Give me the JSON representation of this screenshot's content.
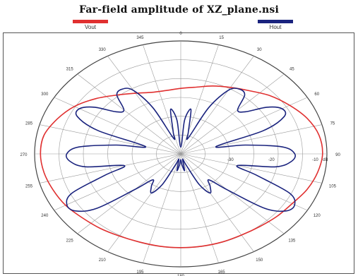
{
  "chart_data": {
    "type": "polar",
    "title": "Far-field amplitude of XZ_plane.nsi",
    "angle_ticks": [
      "0",
      "15",
      "30",
      "45",
      "60",
      "75",
      "90",
      "105",
      "120",
      "135",
      "150",
      "165",
      "180",
      "195",
      "210",
      "225",
      "240",
      "255",
      "270",
      "285",
      "300",
      "315",
      "330",
      "345"
    ],
    "radial_ticks": [
      "-10",
      "-20",
      "-30",
      "dB"
    ],
    "series": [
      {
        "name": "Vout",
        "color": "#e03030",
        "angles": [
          0,
          10,
          20,
          30,
          40,
          50,
          60,
          70,
          80,
          90,
          100,
          110,
          120,
          130,
          140,
          150,
          160,
          170,
          180,
          190,
          200,
          210,
          220,
          230,
          240,
          250,
          260,
          270,
          280,
          290,
          300,
          310,
          320,
          330,
          340,
          350
        ],
        "values": [
          0.58,
          0.6,
          0.64,
          0.68,
          0.73,
          0.8,
          0.86,
          0.92,
          0.96,
          0.97,
          0.95,
          0.92,
          0.88,
          0.86,
          0.84,
          0.83,
          0.83,
          0.83,
          0.83,
          0.83,
          0.83,
          0.84,
          0.86,
          0.88,
          0.91,
          0.93,
          0.95,
          0.96,
          0.95,
          0.9,
          0.84,
          0.76,
          0.68,
          0.62,
          0.58,
          0.57
        ]
      },
      {
        "name": "Hout",
        "color": "#1a237e",
        "angles": [
          0,
          5,
          10,
          15,
          20,
          25,
          30,
          35,
          40,
          45,
          50,
          55,
          60,
          65,
          70,
          75,
          80,
          85,
          90,
          95,
          100,
          105,
          110,
          115,
          120,
          125,
          130,
          135,
          140,
          145,
          150,
          155,
          160,
          165,
          170,
          175,
          180,
          185,
          190,
          195,
          200,
          205,
          210,
          215,
          220,
          225,
          230,
          235,
          240,
          245,
          250,
          255,
          260,
          265,
          270,
          275,
          280,
          285,
          290,
          295,
          300,
          305,
          310,
          315,
          320,
          325,
          330,
          335,
          340,
          345,
          350,
          355
        ],
        "values": [
          0.06,
          0.3,
          0.4,
          0.2,
          0.15,
          0.45,
          0.65,
          0.7,
          0.68,
          0.55,
          0.58,
          0.72,
          0.8,
          0.78,
          0.6,
          0.25,
          0.45,
          0.7,
          0.78,
          0.76,
          0.66,
          0.4,
          0.55,
          0.82,
          0.9,
          0.88,
          0.75,
          0.45,
          0.3,
          0.35,
          0.4,
          0.3,
          0.1,
          0.05,
          0.15,
          0.1,
          0.05,
          0.1,
          0.15,
          0.05,
          0.1,
          0.3,
          0.4,
          0.35,
          0.3,
          0.45,
          0.75,
          0.88,
          0.9,
          0.82,
          0.55,
          0.4,
          0.66,
          0.76,
          0.78,
          0.7,
          0.45,
          0.25,
          0.6,
          0.78,
          0.8,
          0.72,
          0.58,
          0.55,
          0.68,
          0.7,
          0.65,
          0.45,
          0.15,
          0.2,
          0.4,
          0.3
        ]
      }
    ],
    "radial_range": [
      0,
      1
    ]
  }
}
